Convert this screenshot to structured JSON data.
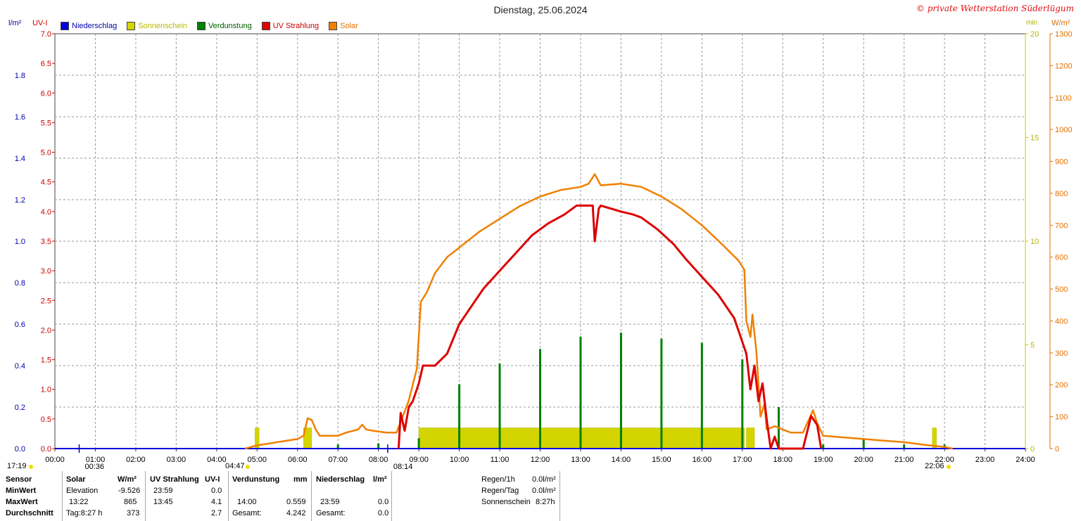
{
  "header": {
    "title": "Dienstag, 25.06.2024",
    "copyright": "© private Wetterstation Süderlügum"
  },
  "axis_labels": {
    "rain_unit": "l/m²",
    "uv_unit": "UV-I",
    "sun_unit": "min",
    "solar_unit": "W/m²"
  },
  "legend": [
    {
      "label": "Niederschlag",
      "color": "#0000dd"
    },
    {
      "label": "Sonnenschein",
      "color": "#d4d400"
    },
    {
      "label": "Verdunstung",
      "color": "#008000"
    },
    {
      "label": "UV Strahlung",
      "color": "#dd0000"
    },
    {
      "label": "Solar",
      "color": "#f08000"
    }
  ],
  "chart_data": {
    "type": "line",
    "title": "Dienstag, 25.06.2024",
    "x_ticks": [
      "00:00",
      "01:00",
      "02:00",
      "03:00",
      "04:00",
      "05:00",
      "06:00",
      "07:00",
      "08:00",
      "09:00",
      "10:00",
      "11:00",
      "12:00",
      "13:00",
      "14:00",
      "15:00",
      "16:00",
      "17:00",
      "18:00",
      "19:00",
      "20:00",
      "21:00",
      "22:00",
      "23:00",
      "24:00"
    ],
    "xlim_hours": [
      0,
      24
    ],
    "y_axes": {
      "rain": {
        "unit": "l/m²",
        "range": [
          0,
          2.0
        ],
        "ticks": [
          "0.0",
          "0.2",
          "0.4",
          "0.6",
          "0.8",
          "1.0",
          "1.2",
          "1.4",
          "1.6",
          "1.8"
        ],
        "tick_values": [
          0,
          0.2,
          0.4,
          0.6,
          0.8,
          1.0,
          1.2,
          1.4,
          1.6,
          1.8
        ],
        "color": "#0000aa"
      },
      "uv": {
        "unit": "UV-I",
        "range": [
          0,
          7.0
        ],
        "ticks": [
          "0.0",
          "0.5",
          "1.0",
          "1.5",
          "2.0",
          "2.5",
          "3.0",
          "3.5",
          "4.0",
          "4.5",
          "5.0",
          "5.5",
          "6.0",
          "6.5",
          "7.0"
        ],
        "tick_values": [
          0,
          0.5,
          1,
          1.5,
          2,
          2.5,
          3,
          3.5,
          4,
          4.5,
          5,
          5.5,
          6,
          6.5,
          7
        ],
        "color": "#cc0000"
      },
      "sun": {
        "unit": "min",
        "range": [
          0,
          20
        ],
        "ticks": [
          "0",
          "5",
          "10",
          "15",
          "20"
        ],
        "tick_values": [
          0,
          5,
          10,
          15,
          20
        ],
        "color": "#c8c800"
      },
      "solar": {
        "unit": "W/m²",
        "range": [
          0,
          1300
        ],
        "ticks": [
          "0",
          "100",
          "200",
          "300",
          "400",
          "500",
          "600",
          "700",
          "800",
          "900",
          "1000",
          "1100",
          "1200",
          "1300"
        ],
        "tick_values": [
          0,
          100,
          200,
          300,
          400,
          500,
          600,
          700,
          800,
          900,
          1000,
          1100,
          1200,
          1300
        ],
        "color": "#e07000"
      }
    },
    "grid": true,
    "series": [
      {
        "name": "Solar",
        "axis": "solar",
        "color": "#f08000",
        "points": [
          [
            4.7,
            0
          ],
          [
            5.0,
            10
          ],
          [
            5.5,
            20
          ],
          [
            6.0,
            30
          ],
          [
            6.15,
            40
          ],
          [
            6.25,
            95
          ],
          [
            6.35,
            90
          ],
          [
            6.45,
            60
          ],
          [
            6.55,
            40
          ],
          [
            7.0,
            40
          ],
          [
            7.2,
            50
          ],
          [
            7.5,
            60
          ],
          [
            7.6,
            75
          ],
          [
            7.7,
            60
          ],
          [
            7.9,
            55
          ],
          [
            8.2,
            50
          ],
          [
            8.45,
            50
          ],
          [
            8.6,
            100
          ],
          [
            8.75,
            150
          ],
          [
            8.85,
            200
          ],
          [
            8.95,
            250
          ],
          [
            9.05,
            460
          ],
          [
            9.2,
            490
          ],
          [
            9.4,
            550
          ],
          [
            9.7,
            600
          ],
          [
            10.0,
            630
          ],
          [
            10.5,
            680
          ],
          [
            11.0,
            720
          ],
          [
            11.5,
            760
          ],
          [
            12.0,
            790
          ],
          [
            12.5,
            810
          ],
          [
            13.0,
            820
          ],
          [
            13.2,
            830
          ],
          [
            13.35,
            860
          ],
          [
            13.5,
            825
          ],
          [
            14.0,
            830
          ],
          [
            14.5,
            820
          ],
          [
            15.0,
            790
          ],
          [
            15.5,
            750
          ],
          [
            16.0,
            700
          ],
          [
            16.5,
            640
          ],
          [
            16.9,
            590
          ],
          [
            17.05,
            560
          ],
          [
            17.1,
            400
          ],
          [
            17.2,
            350
          ],
          [
            17.25,
            420
          ],
          [
            17.35,
            300
          ],
          [
            17.45,
            100
          ],
          [
            17.55,
            140
          ],
          [
            17.6,
            60
          ],
          [
            17.8,
            70
          ],
          [
            18.0,
            60
          ],
          [
            18.2,
            50
          ],
          [
            18.5,
            50
          ],
          [
            18.75,
            120
          ],
          [
            18.85,
            80
          ],
          [
            19.0,
            40
          ],
          [
            19.5,
            35
          ],
          [
            20.0,
            30
          ],
          [
            20.5,
            25
          ],
          [
            21.0,
            20
          ],
          [
            21.5,
            12
          ],
          [
            22.0,
            5
          ],
          [
            22.2,
            0
          ]
        ]
      },
      {
        "name": "UV Strahlung",
        "axis": "uv",
        "color": "#dd0000",
        "points": [
          [
            8.5,
            0
          ],
          [
            8.55,
            0.6
          ],
          [
            8.65,
            0.3
          ],
          [
            8.75,
            0.7
          ],
          [
            8.85,
            0.8
          ],
          [
            9.0,
            1.1
          ],
          [
            9.1,
            1.4
          ],
          [
            9.4,
            1.4
          ],
          [
            9.7,
            1.6
          ],
          [
            10.0,
            2.1
          ],
          [
            10.3,
            2.4
          ],
          [
            10.6,
            2.7
          ],
          [
            11.0,
            3.0
          ],
          [
            11.4,
            3.3
          ],
          [
            11.8,
            3.6
          ],
          [
            12.2,
            3.8
          ],
          [
            12.6,
            3.95
          ],
          [
            12.9,
            4.1
          ],
          [
            13.3,
            4.1
          ],
          [
            13.35,
            3.5
          ],
          [
            13.45,
            4.05
          ],
          [
            13.5,
            4.1
          ],
          [
            14.0,
            4.0
          ],
          [
            14.3,
            3.95
          ],
          [
            14.5,
            3.9
          ],
          [
            14.9,
            3.7
          ],
          [
            15.3,
            3.45
          ],
          [
            15.6,
            3.2
          ],
          [
            16.0,
            2.9
          ],
          [
            16.4,
            2.6
          ],
          [
            16.8,
            2.2
          ],
          [
            17.0,
            1.8
          ],
          [
            17.1,
            1.6
          ],
          [
            17.2,
            1.0
          ],
          [
            17.3,
            1.4
          ],
          [
            17.4,
            0.8
          ],
          [
            17.5,
            1.1
          ],
          [
            17.6,
            0.5
          ],
          [
            17.7,
            0.0
          ],
          [
            17.8,
            0.2
          ],
          [
            17.9,
            0.0
          ],
          [
            18.5,
            0.0
          ],
          [
            18.7,
            0.55
          ],
          [
            18.85,
            0.4
          ],
          [
            18.95,
            0.0
          ]
        ]
      }
    ],
    "bars": {
      "Verdunstung": {
        "axis": "rain",
        "color": "#008000",
        "width_h": 0.03,
        "values": [
          [
            7.0,
            0.02
          ],
          [
            8.0,
            0.025
          ],
          [
            9.0,
            0.05
          ],
          [
            10.0,
            0.31
          ],
          [
            11.0,
            0.41
          ],
          [
            12.0,
            0.48
          ],
          [
            13.0,
            0.54
          ],
          [
            14.0,
            0.559
          ],
          [
            15.0,
            0.53
          ],
          [
            16.0,
            0.51
          ],
          [
            17.0,
            0.43
          ],
          [
            17.9,
            0.2
          ],
          [
            19.0,
            0.02
          ],
          [
            20.0,
            0.05
          ],
          [
            21.0,
            0.02
          ],
          [
            22.0,
            0.02
          ]
        ]
      },
      "Sonnenschein": {
        "axis": "sun",
        "color": "#d4d400",
        "blocks": [
          [
            4.95,
            5.05,
            1.0
          ],
          [
            6.15,
            6.35,
            1.0
          ],
          [
            9.0,
            17.05,
            1.0
          ],
          [
            17.1,
            17.3,
            1.0
          ],
          [
            21.7,
            21.8,
            1.0
          ]
        ]
      }
    },
    "x_annotations": [
      {
        "hour": 0.6,
        "label": "00:36"
      },
      {
        "hour": 8.23,
        "label": "08:14"
      }
    ]
  },
  "sun_times": {
    "prev": "17:19",
    "rise": "04:47",
    "set": "22:06"
  },
  "summary": {
    "headers": {
      "sensor": "Sensor",
      "solar": "Solar",
      "solar_unit": "W/m²",
      "uv": "UV Strahlung",
      "uv_unit": "UV-I",
      "evap": "Verdunstung",
      "evap_unit": "mm",
      "rain": "Niederschlag",
      "rain_unit": "l/m²"
    },
    "rows": [
      {
        "label": "MinWert",
        "solar_time": "Elevation",
        "solar_val": "-9.526",
        "uv_time": "23:59",
        "uv_val": "0.0",
        "evap_time": "",
        "evap_val": "",
        "rain_time": "",
        "rain_val": ""
      },
      {
        "label": "MaxWert",
        "solar_time": "13:22",
        "solar_val": "865",
        "uv_time": "13:45",
        "uv_val": "4.1",
        "evap_time": "14:00",
        "evap_val": "0.559",
        "rain_time": "23:59",
        "rain_val": "0.0"
      },
      {
        "label": "Durchschnitt",
        "solar_time": "Tag:8:27 h",
        "solar_val": "373",
        "uv_time": "",
        "uv_val": "2.7",
        "evap_time": "Gesamt:",
        "evap_val": "4.242",
        "rain_time": "Gesamt:",
        "rain_val": "0.0"
      }
    ],
    "extra": [
      {
        "label": "Regen/1h",
        "value": "0.0l/m²"
      },
      {
        "label": "Regen/Tag",
        "value": "0.0l/m²"
      },
      {
        "label": "Sonnenschein",
        "value": "8:27h"
      }
    ]
  }
}
